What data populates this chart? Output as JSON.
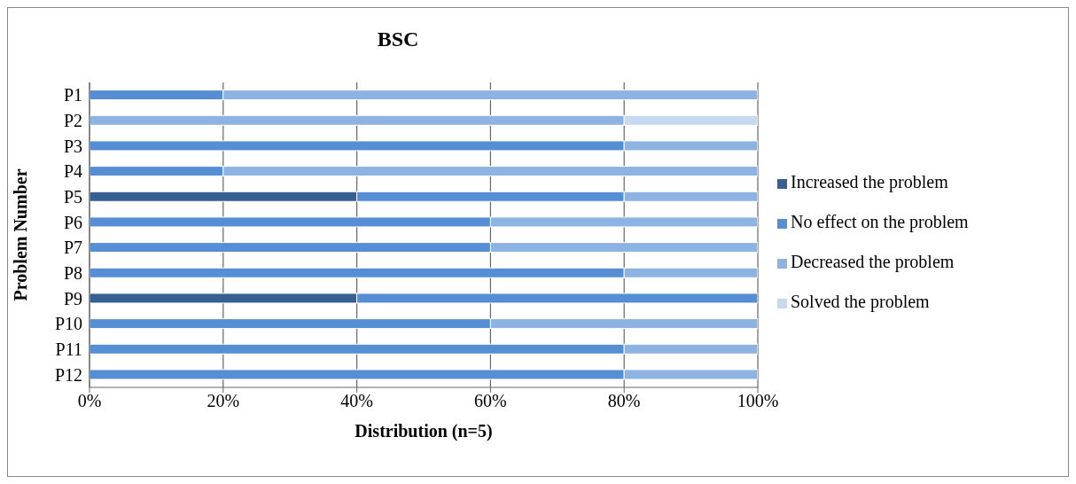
{
  "chart_data": {
    "type": "bar",
    "title": "BSC",
    "xlabel": "Distribution (n=5)",
    "ylabel": "Problem Number",
    "orientation": "horizontal",
    "stacked": true,
    "categories": [
      "P1",
      "P2",
      "P3",
      "P4",
      "P5",
      "P6",
      "P7",
      "P8",
      "P9",
      "P10",
      "P11",
      "P12"
    ],
    "series": [
      {
        "name": "Increased the problem",
        "color": "#376092",
        "values": [
          0,
          0,
          0,
          0,
          40,
          0,
          0,
          0,
          40,
          0,
          0,
          0
        ]
      },
      {
        "name": "No effect on the problem",
        "color": "#558ed5",
        "values": [
          20,
          0,
          80,
          20,
          40,
          60,
          60,
          80,
          60,
          60,
          80,
          80
        ]
      },
      {
        "name": "Decreased the problem",
        "color": "#8db3e2",
        "values": [
          80,
          80,
          20,
          80,
          20,
          40,
          40,
          20,
          0,
          40,
          20,
          20
        ]
      },
      {
        "name": "Solved the problem",
        "color": "#c6d9f1",
        "values": [
          0,
          20,
          0,
          0,
          0,
          0,
          0,
          0,
          0,
          0,
          0,
          0
        ]
      }
    ],
    "xlim": [
      0,
      100
    ],
    "xticks": [
      {
        "value": 0,
        "label": "0%"
      },
      {
        "value": 20,
        "label": "20%"
      },
      {
        "value": 40,
        "label": "40%"
      },
      {
        "value": 60,
        "label": "60%"
      },
      {
        "value": 80,
        "label": "80%"
      },
      {
        "value": 100,
        "label": "100%"
      }
    ],
    "grid": "x",
    "legend": "right"
  }
}
